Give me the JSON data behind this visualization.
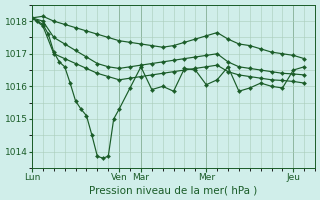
{
  "bg_color": "#d0eeea",
  "grid_color": "#aaccbb",
  "line_color": "#1a5c28",
  "xlabel": "Pression niveau de la mer( hPa )",
  "ylim": [
    1013.5,
    1018.5
  ],
  "yticks": [
    1014,
    1015,
    1016,
    1017,
    1018
  ],
  "xtick_labels": [
    "Lun",
    "Ven",
    "Mar",
    "Mer",
    "Jeu"
  ],
  "xtick_positions": [
    0,
    96,
    120,
    192,
    288
  ],
  "total_hours": 312,
  "series_top_x": [
    0,
    12,
    24,
    36,
    48,
    60,
    72,
    84,
    96,
    108,
    120,
    132,
    144,
    156,
    168,
    180,
    192,
    204,
    216,
    228,
    240,
    252,
    264,
    276,
    288,
    300
  ],
  "series_top_y": [
    1018.1,
    1018.15,
    1018.0,
    1017.9,
    1017.8,
    1017.7,
    1017.6,
    1017.5,
    1017.4,
    1017.35,
    1017.3,
    1017.25,
    1017.2,
    1017.25,
    1017.35,
    1017.45,
    1017.55,
    1017.65,
    1017.45,
    1017.3,
    1017.25,
    1017.15,
    1017.05,
    1017.0,
    1016.95,
    1016.85
  ],
  "series_mid_x": [
    0,
    12,
    24,
    36,
    48,
    60,
    72,
    84,
    96,
    108,
    120,
    132,
    144,
    156,
    168,
    180,
    192,
    204,
    216,
    228,
    240,
    252,
    264,
    276,
    288,
    300
  ],
  "series_mid_y": [
    1018.1,
    1018.0,
    1017.5,
    1017.3,
    1017.1,
    1016.9,
    1016.7,
    1016.6,
    1016.55,
    1016.6,
    1016.65,
    1016.7,
    1016.75,
    1016.8,
    1016.85,
    1016.9,
    1016.95,
    1017.0,
    1016.75,
    1016.6,
    1016.55,
    1016.5,
    1016.45,
    1016.4,
    1016.38,
    1016.35
  ],
  "series_low_x": [
    0,
    12,
    24,
    36,
    48,
    60,
    72,
    84,
    96,
    108,
    120,
    132,
    144,
    156,
    168,
    180,
    192,
    204,
    216,
    228,
    240,
    252,
    264,
    276,
    288,
    300
  ],
  "series_low_y": [
    1018.1,
    1017.85,
    1017.0,
    1016.85,
    1016.7,
    1016.55,
    1016.4,
    1016.3,
    1016.2,
    1016.25,
    1016.3,
    1016.35,
    1016.4,
    1016.45,
    1016.5,
    1016.55,
    1016.6,
    1016.65,
    1016.45,
    1016.35,
    1016.3,
    1016.25,
    1016.2,
    1016.18,
    1016.15,
    1016.1
  ],
  "series_act_x": [
    0,
    6,
    12,
    18,
    24,
    30,
    36,
    42,
    48,
    54,
    60,
    66,
    72,
    78,
    84,
    90,
    96,
    108,
    120,
    132,
    144,
    156,
    168,
    180,
    192,
    204,
    216,
    228,
    240,
    252,
    264,
    276,
    288,
    300
  ],
  "series_act_y": [
    1018.1,
    1018.0,
    1017.9,
    1017.6,
    1017.05,
    1016.75,
    1016.6,
    1016.1,
    1015.55,
    1015.3,
    1015.1,
    1014.5,
    1013.85,
    1013.8,
    1013.85,
    1015.0,
    1015.3,
    1015.95,
    1016.6,
    1015.9,
    1016.0,
    1015.85,
    1016.55,
    1016.5,
    1016.05,
    1016.2,
    1016.6,
    1015.85,
    1015.95,
    1016.1,
    1016.0,
    1015.95,
    1016.5,
    1016.6
  ]
}
